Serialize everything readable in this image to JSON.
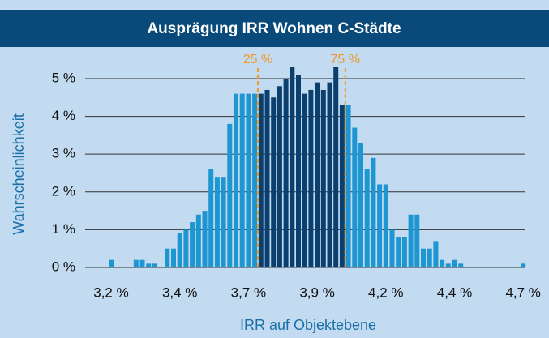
{
  "chart_data": {
    "type": "bar",
    "title": "Ausprägung IRR Wohnen C-Städte",
    "xlabel": "IRR auf Objektebene",
    "ylabel": "Wahrscheinlichkeit",
    "categories": [
      "3,2 %",
      null,
      null,
      null,
      null,
      null,
      null,
      null,
      null,
      null,
      null,
      "3,4 %",
      null,
      null,
      null,
      null,
      null,
      null,
      null,
      null,
      null,
      null,
      "3,7 %",
      null,
      null,
      null,
      null,
      null,
      null,
      null,
      null,
      null,
      null,
      "3,9 %",
      null,
      null,
      null,
      null,
      null,
      null,
      null,
      null,
      null,
      null,
      "4,2 %",
      null,
      null,
      null,
      null,
      null,
      null,
      null,
      null,
      null,
      null,
      "4,4 %",
      null,
      null,
      null,
      null,
      null,
      null,
      null,
      null,
      null,
      null,
      "4,7 %"
    ],
    "values": [
      0.2,
      0,
      0,
      0,
      0.2,
      0.2,
      0.1,
      0.1,
      0,
      0.5,
      0.5,
      0.9,
      1.0,
      1.2,
      1.4,
      1.5,
      2.6,
      2.4,
      2.4,
      3.8,
      4.6,
      4.6,
      4.6,
      4.6,
      4.6,
      4.7,
      4.5,
      4.8,
      5.0,
      5.3,
      5.1,
      4.6,
      4.7,
      4.9,
      4.7,
      4.9,
      5.3,
      4.3,
      4.3,
      3.7,
      3.3,
      2.6,
      2.9,
      2.2,
      2.2,
      1.0,
      0.8,
      0.8,
      1.4,
      1.4,
      0.5,
      0.5,
      0.7,
      0.2,
      0.1,
      0.2,
      0.1,
      0,
      0,
      0,
      0,
      0,
      0,
      0,
      0,
      0,
      0.1
    ],
    "color": "#1e96d2",
    "highlight_color": "#0b3f6e",
    "quantile_lines": [
      {
        "label": "25 %",
        "position": 23.5
      },
      {
        "label": "75 %",
        "position": 37.5
      }
    ],
    "quantile_color": "#f0962a",
    "ylim": [
      0,
      5.6
    ],
    "yticks": [
      {
        "value": 0,
        "label": "0 %"
      },
      {
        "value": 1,
        "label": "1 %"
      },
      {
        "value": 2,
        "label": "2 %"
      },
      {
        "value": 3,
        "label": "3 %"
      },
      {
        "value": 4,
        "label": "4 %"
      },
      {
        "value": 5,
        "label": "5 %"
      }
    ],
    "grid": true
  }
}
